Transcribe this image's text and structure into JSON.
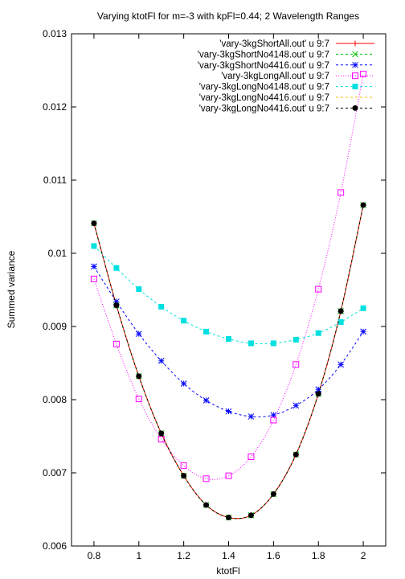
{
  "chart_data": {
    "type": "line",
    "title": "Varying ktotFl for m=-3 with kpFl=0.44; 2 Wavelength Ranges",
    "xlabel": "ktotFl",
    "ylabel": "Summed variance",
    "xlim": [
      0.7,
      2.1
    ],
    "ylim": [
      0.006,
      0.013
    ],
    "xticks": [
      0.8,
      1,
      1.2,
      1.4,
      1.6,
      1.8,
      2
    ],
    "xtick_labels": [
      "0.8",
      "1",
      "1.2",
      "1.4",
      "1.6",
      "1.8",
      "2"
    ],
    "yticks": [
      0.006,
      0.007,
      0.008,
      0.009,
      0.01,
      0.011,
      0.012,
      0.013
    ],
    "ytick_labels": [
      "0.006",
      "0.007",
      "0.008",
      "0.009",
      "0.01",
      "0.011",
      "0.012",
      "0.013"
    ],
    "grid": false,
    "legend_position": "top-right",
    "x": [
      0.8,
      0.9,
      1.0,
      1.1,
      1.2,
      1.3,
      1.4,
      1.5,
      1.6,
      1.7,
      1.8,
      1.9,
      2.0
    ],
    "series": [
      {
        "name": "'vary-3kgShortAll.out' u 9:7",
        "color": "#ff0000",
        "marker": "plus",
        "dash": "solid",
        "values": [
          0.01041,
          0.00929,
          0.00832,
          0.00754,
          0.00696,
          0.00656,
          0.00639,
          0.00642,
          0.00671,
          0.00725,
          0.00808,
          0.00921,
          0.01066
        ]
      },
      {
        "name": "'vary-3kgShortNo4148.out' u 9:7",
        "color": "#00c000",
        "marker": "cross",
        "dash": "dashed",
        "values": [
          0.01041,
          0.00929,
          0.00832,
          0.00754,
          0.00696,
          0.00656,
          0.00639,
          0.00642,
          0.00671,
          0.00725,
          0.00808,
          0.00921,
          0.01066
        ]
      },
      {
        "name": "'vary-3kgShortNo4416.out' u 9:7",
        "color": "#0000ff",
        "marker": "star",
        "dash": "dashed",
        "values": [
          0.00982,
          0.00934,
          0.0089,
          0.00853,
          0.00822,
          0.00799,
          0.00784,
          0.00777,
          0.00779,
          0.00792,
          0.00814,
          0.00848,
          0.00893
        ]
      },
      {
        "name": "'vary-3kgLongAll.out' u 9:7",
        "color": "#ff00ff",
        "marker": "open-square",
        "dash": "dotted",
        "values": [
          0.00965,
          0.00876,
          0.00801,
          0.00746,
          0.0071,
          0.00692,
          0.00696,
          0.00722,
          0.00772,
          0.00848,
          0.00951,
          0.01083,
          0.01245
        ]
      },
      {
        "name": "'vary-3kgLongNo4148.out' u 9:7",
        "color": "#00e0e0",
        "marker": "filled-square",
        "dash": "dashed",
        "values": [
          0.0101,
          0.0098,
          0.00951,
          0.00927,
          0.00908,
          0.00893,
          0.00883,
          0.00877,
          0.00877,
          0.00882,
          0.00891,
          0.00906,
          0.00925
        ]
      },
      {
        "name": "'vary-3kgLongNo4416.out' u 9:7",
        "color": "#f0c000",
        "marker": "none",
        "dash": "dashed",
        "values": [
          0.01041,
          0.00929,
          0.00832,
          0.00754,
          0.00696,
          0.00656,
          0.00639,
          0.00642,
          0.00671,
          0.00725,
          0.00808,
          0.00921,
          0.01066
        ]
      },
      {
        "name": "'vary-3kgLongNo4416.out' u 9:7",
        "color": "#000000",
        "marker": "filled-circle",
        "dash": "dashed",
        "values": [
          0.01041,
          0.00929,
          0.00832,
          0.00754,
          0.00696,
          0.00656,
          0.00639,
          0.00642,
          0.00671,
          0.00725,
          0.00808,
          0.00921,
          0.01066
        ]
      }
    ]
  }
}
